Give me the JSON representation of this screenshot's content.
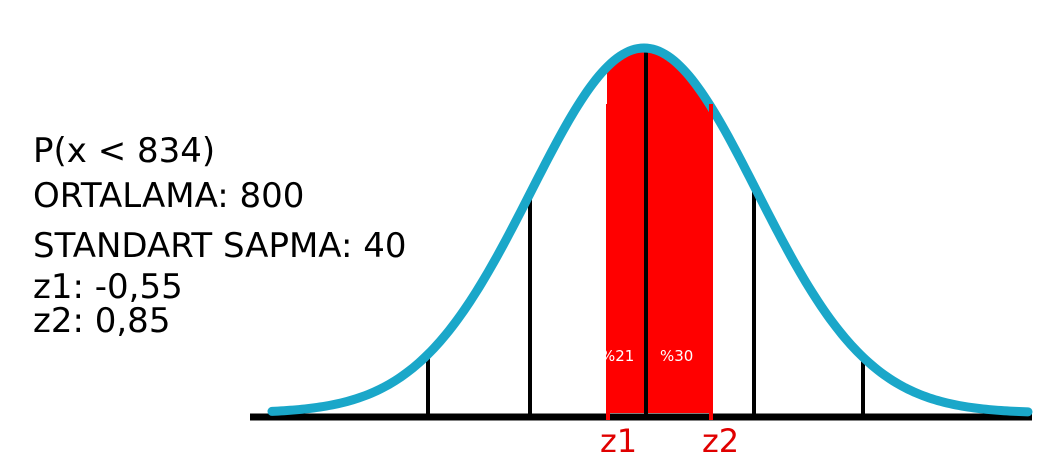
{
  "info": {
    "probability": "P(x < 834)",
    "mean": "ORTALAMA: 800",
    "std": "STANDART SAPMA: 40",
    "z1": "z1: -0,55",
    "z2": "z2: 0,85"
  },
  "areas": {
    "left_pct": "%21",
    "right_pct": "%30"
  },
  "markers": {
    "z1": "z1",
    "z2": "z2"
  },
  "colors": {
    "curve": "#1aa7c9",
    "shade": "#ff0000",
    "axis": "#000000",
    "marker_label": "#e00000"
  }
}
